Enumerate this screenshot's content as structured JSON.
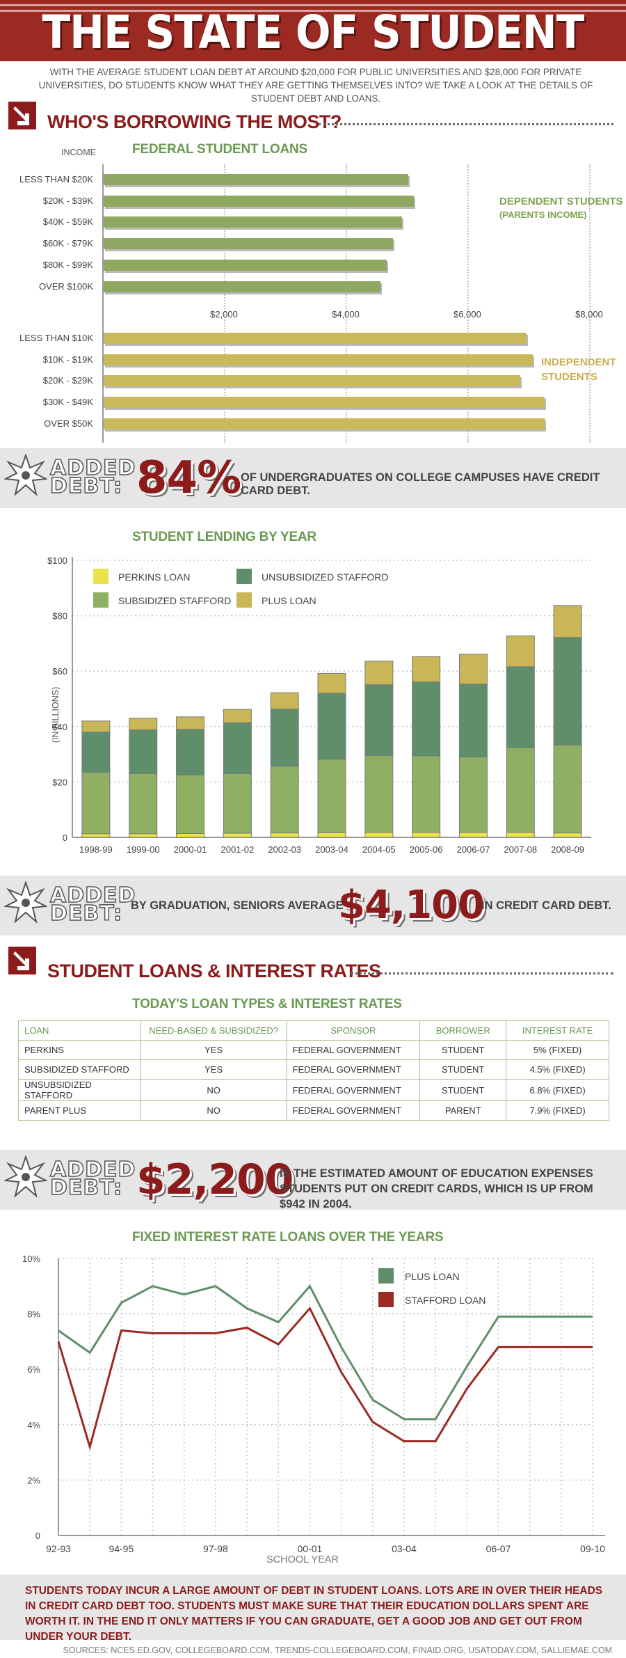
{
  "header": {
    "title": "THE STATE OF STUDENT DEBT",
    "intro": "WITH THE AVERAGE STUDENT LOAN DEBT AT AROUND $20,000 FOR PUBLIC UNIVERSITIES AND $28,000 FOR PRIVATE UNIVERSITIES, DO STUDENTS KNOW WHAT THEY ARE GETTING THEMSELVES INTO?  WE TAKE A LOOK AT THE DETAILS OF STUDENT DEBT AND LOANS."
  },
  "section1": {
    "title": "WHO'S BORROWING THE MOST?"
  },
  "section2": {
    "title": "STUDENT LOANS & INTEREST RATES",
    "table_title": "TODAY'S LOAN TYPES & INTEREST RATES"
  },
  "added": {
    "word1": "ADDED",
    "word2": "DEBT:",
    "band1": {
      "big": "84%",
      "text": "OF UNDERGRADUATES ON COLLEGE CAMPUSES HAVE CREDIT CARD DEBT."
    },
    "band2": {
      "pre": "BY GRADUATION, SENIORS AVERAGE",
      "big": "$4,100",
      "post": "IN CREDIT CARD DEBT."
    },
    "band3": {
      "big": "$2,200",
      "text": "IS THE ESTIMATED AMOUNT OF EDUCATION EXPENSES STUDENTS PUT ON CREDIT CARDS, WHICH IS UP FROM $942 IN 2004."
    }
  },
  "loan_table": {
    "headers": [
      "LOAN",
      "NEED-BASED & SUBSIDIZED?",
      "SPONSOR",
      "BORROWER",
      "INTEREST RATE"
    ],
    "rows": [
      [
        "PERKINS",
        "YES",
        "FEDERAL GOVERNMENT",
        "STUDENT",
        "5% (FIXED)"
      ],
      [
        "SUBSIDIZED STAFFORD",
        "YES",
        "FEDERAL GOVERNMENT",
        "STUDENT",
        "4.5% (FIXED)"
      ],
      [
        "UNSUBSIDIZED STAFFORD",
        "NO",
        "FEDERAL GOVERNMENT",
        "STUDENT",
        "6.8% (FIXED)"
      ],
      [
        "PARENT PLUS",
        "NO",
        "FEDERAL GOVERNMENT",
        "PARENT",
        "7.9% (FIXED)"
      ]
    ]
  },
  "footer": {
    "text": "STUDENTS TODAY INCUR A LARGE AMOUNT OF DEBT IN STUDENT LOANS.  LOTS ARE IN OVER THEIR HEADS IN CREDIT CARD DEBT TOO.  STUDENTS MUST MAKE SURE THAT THEIR EDUCATION DOLLARS SPENT ARE WORTH IT.  IN THE END IT ONLY MATTERS IF YOU CAN GRADUATE, GET A GOOD JOB AND GET OUT FROM UNDER YOUR DEBT.",
    "sources": "SOURCES: NCES.ED.GOV, COLLEGEBOARD.COM, TRENDS-COLLEGEBOARD.COM, FINAID.ORG, USATODAY.COM, SALLIEMAE.COM"
  },
  "colors": {
    "brand_red": "#9a2a22",
    "green": "#8fa861",
    "gold": "#c9b95a",
    "dark_green": "#5e8f6a",
    "yellow": "#e8e44a"
  },
  "chart_data": [
    {
      "type": "bar",
      "orientation": "horizontal",
      "title": "FEDERAL STUDENT LOANS",
      "ylabel": "INCOME",
      "xlim": [
        0,
        8000
      ],
      "xticks": [
        "$2,000",
        "$4,000",
        "$6,000",
        "$8,000"
      ],
      "series": [
        {
          "name": "DEPENDENT STUDENTS",
          "subtitle": "(PARENTS INCOME)",
          "categories": [
            "LESS THAN $20K",
            "$20K - $39K",
            "$40K - $59K",
            "$60K - $79K",
            "$80K - $99K",
            "OVER $100K"
          ],
          "values": [
            5000,
            5100,
            4900,
            4750,
            4650,
            4550
          ]
        },
        {
          "name": "INDEPENDENT STUDENTS",
          "categories": [
            "LESS THAN $10K",
            "$10K - $19K",
            "$20K - $29K",
            "$30K - $49K",
            "OVER $50K"
          ],
          "values": [
            6950,
            7050,
            6850,
            7250,
            7250
          ]
        }
      ]
    },
    {
      "type": "bar",
      "stacked": true,
      "title": "STUDENT LENDING BY YEAR",
      "ylabel": "(IN BILLIONS)",
      "ylim": [
        0,
        100
      ],
      "yticks": [
        "0",
        "$20",
        "$40",
        "$60",
        "$80",
        "$100"
      ],
      "categories": [
        "1998-99",
        "1999-00",
        "2000-01",
        "2001-02",
        "2002-03",
        "2003-04",
        "2004-05",
        "2005-06",
        "2006-07",
        "2007-08",
        "2008-09"
      ],
      "series": [
        {
          "name": "PERKINS LOAN",
          "color": "#e8e44a",
          "values": [
            1.3,
            1.3,
            1.4,
            1.5,
            1.6,
            1.7,
            1.8,
            1.8,
            1.8,
            1.8,
            1.6
          ]
        },
        {
          "name": "SUBSIDIZED STAFFORD",
          "color": "#8fb062",
          "values": [
            22.2,
            21.7,
            21.1,
            21.5,
            24.1,
            26.5,
            27.7,
            27.6,
            27.2,
            30.5,
            31.7
          ]
        },
        {
          "name": "UNSUBSIDIZED STAFFORD",
          "color": "#5e8f6a",
          "values": [
            14.5,
            15.8,
            16.5,
            18.4,
            20.6,
            23.8,
            25.6,
            26.7,
            26.3,
            29.3,
            38.9
          ]
        },
        {
          "name": "PLUS LOAN",
          "color": "#c8b657",
          "values": [
            4.0,
            4.2,
            4.5,
            4.8,
            5.9,
            7.2,
            8.5,
            9.1,
            10.8,
            11.1,
            11.5
          ]
        }
      ]
    },
    {
      "type": "line",
      "title": "FIXED INTEREST RATE LOANS OVER THE YEARS",
      "xlabel": "SCHOOL YEAR",
      "ylim": [
        0,
        10
      ],
      "yticks": [
        "0",
        "2%",
        "4%",
        "6%",
        "8%",
        "10%"
      ],
      "xticks": [
        "92-93",
        "94-95",
        "97-98",
        "00-01",
        "03-04",
        "06-07",
        "09-10"
      ],
      "x": [
        "92-93",
        "93-94",
        "94-95",
        "95-96",
        "96-97",
        "97-98",
        "98-99",
        "99-00",
        "00-01",
        "01-02",
        "02-03",
        "03-04",
        "04-05",
        "05-06",
        "06-07",
        "07-08",
        "08-09",
        "09-10"
      ],
      "series": [
        {
          "name": "PLUS LOAN",
          "color": "#5e8f6a",
          "values": [
            7.4,
            6.6,
            8.4,
            9.0,
            8.7,
            9.0,
            8.2,
            7.7,
            9.0,
            6.8,
            4.9,
            4.2,
            4.2,
            6.1,
            7.9,
            7.9,
            7.9,
            7.9
          ]
        },
        {
          "name": "STAFFORD LOAN",
          "color": "#9a2a22",
          "values": [
            7.0,
            3.2,
            7.4,
            7.3,
            7.3,
            7.3,
            7.5,
            6.9,
            8.2,
            5.9,
            4.1,
            3.4,
            3.4,
            5.3,
            6.8,
            6.8,
            6.8,
            6.8
          ]
        }
      ]
    }
  ]
}
